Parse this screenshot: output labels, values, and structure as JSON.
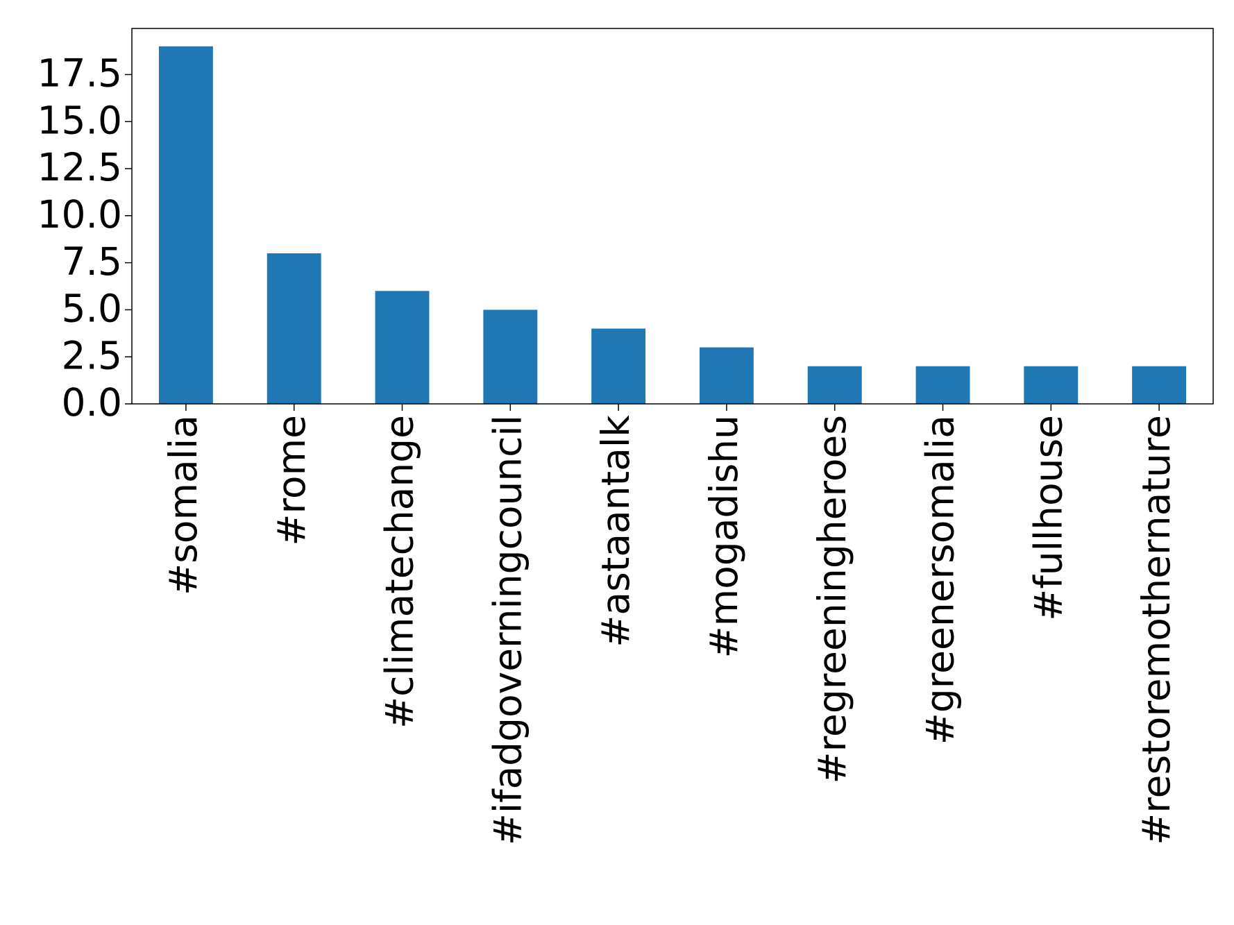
{
  "chart_data": {
    "type": "bar",
    "categories": [
      "#somalia",
      "#rome",
      "#climatechange",
      "#ifadgoverningcouncil",
      "#astaantalk",
      "#mogadishu",
      "#regreeningheroes",
      "#greenersomalia",
      "#fullhouse",
      "#restoremothernature"
    ],
    "values": [
      19,
      8,
      6,
      5,
      4,
      3,
      2,
      2,
      2,
      2
    ],
    "color": "#1f77b4",
    "ylim": [
      0,
      19.95
    ],
    "yticks": [
      0,
      2.5,
      5,
      7.5,
      10,
      12.5,
      15,
      17.5
    ],
    "ytick_labels": [
      "0.0",
      "2.5",
      "5.0",
      "7.5",
      "10.0",
      "12.5",
      "15.0",
      "17.5"
    ],
    "grid": false
  }
}
